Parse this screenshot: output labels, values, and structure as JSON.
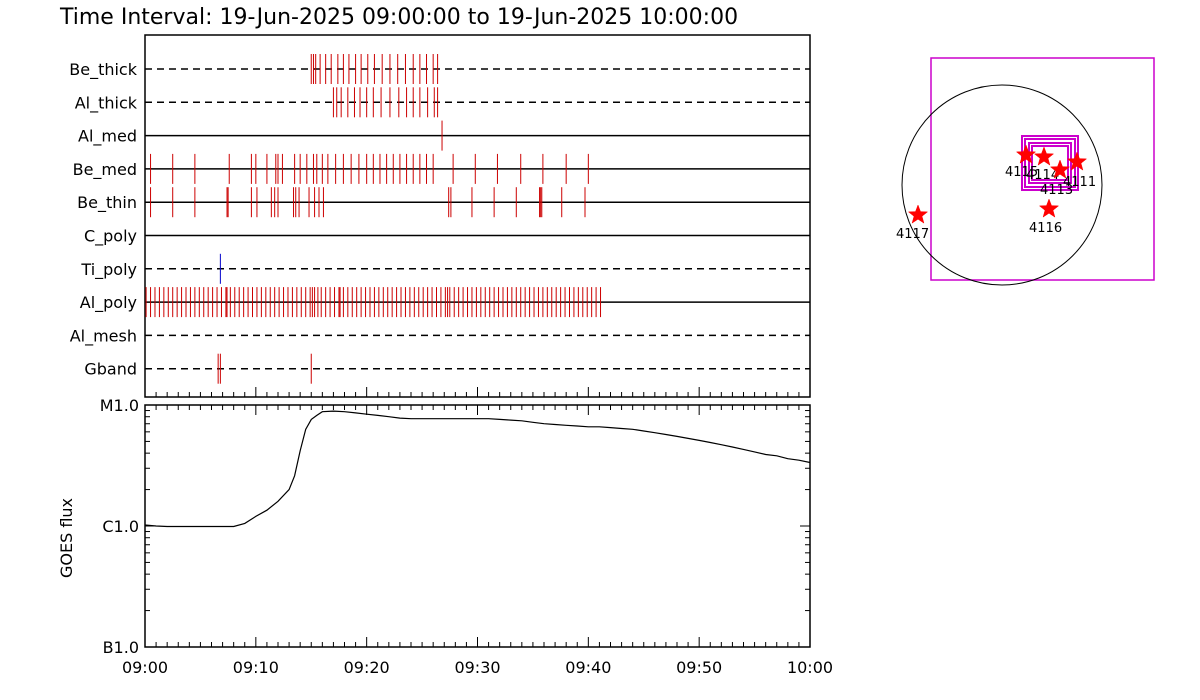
{
  "title": "Time Interval: 19-Jun-2025 09:00:00 to 19-Jun-2025 10:00:00",
  "chart_data": [
    {
      "type": "scatter",
      "name": "filter-timeline",
      "xlim": [
        "09:00",
        "10:00"
      ],
      "rows": [
        {
          "label": "Be_thick",
          "line": "dashed",
          "color": "#cc0000",
          "events": [
            "09:15:0",
            "09:15:2",
            "09:15:4",
            "09:15:8",
            "09:16:3",
            "09:16:8",
            "09:17:4",
            "09:17:9",
            "09:18:4",
            "09:19:0",
            "09:19:5",
            "09:20:1",
            "09:20:7",
            "09:21:4",
            "09:22:1",
            "09:22:8",
            "09:23:5",
            "09:24:2",
            "09:24:8",
            "09:25:4",
            "09:26:0",
            "09:26:4"
          ]
        },
        {
          "label": "Al_thick",
          "line": "dashed",
          "color": "#cc0000",
          "events": [
            "09:17:0",
            "09:17:3",
            "09:17:7",
            "09:18:3",
            "09:18:9",
            "09:19:4",
            "09:20:0",
            "09:20:6",
            "09:21:3",
            "09:22:1",
            "09:22:9",
            "09:23:6",
            "09:24:2",
            "09:24:8",
            "09:25:5",
            "09:26:1",
            "09:26:4"
          ]
        },
        {
          "label": "Al_med",
          "line": "solid",
          "color": "#cc0000",
          "events": [
            "09:26:8"
          ]
        },
        {
          "label": "Be_med",
          "line": "solid",
          "color": "#cc0000",
          "events": [
            "09:00:5",
            "09:02:5",
            "09:04:5",
            "09:07:6",
            "09:09:6",
            "09:10:0",
            "09:11:0",
            "09:11:8",
            "09:12:0",
            "09:12:4",
            "09:13:5",
            "09:14:0",
            "09:14:6",
            "09:15:2",
            "09:15:5",
            "09:16:0",
            "09:16:5",
            "09:17:2",
            "09:17:9",
            "09:18:6",
            "09:19:3",
            "09:20:0",
            "09:20:6",
            "09:21:2",
            "09:21:8",
            "09:22:4",
            "09:23:0",
            "09:23:6",
            "09:24:2",
            "09:24:8",
            "09:25:4",
            "09:26:0",
            "09:27:8",
            "09:29:8",
            "09:31:8",
            "09:33:9",
            "09:35:9",
            "09:38:0",
            "09:40:0"
          ]
        },
        {
          "label": "Be_thin",
          "line": "solid",
          "color": "#cc0000",
          "events": [
            "09:00:5",
            "09:02:5",
            "09:04:5",
            "09:07:4",
            "09:07:5",
            "09:09:6",
            "09:10:1",
            "09:11:4",
            "09:11:7",
            "09:12:0",
            "09:13:4",
            "09:13:6",
            "09:13:9",
            "09:14:8",
            "09:15:3",
            "09:15:7",
            "09:16:1",
            "09:27:4",
            "09:27:6",
            "09:29:5",
            "09:31:5",
            "09:33:5",
            "09:35:6",
            "09:35:7",
            "09:35:8",
            "09:37:6",
            "09:39:7"
          ]
        },
        {
          "label": "C_poly",
          "line": "solid",
          "color": "#cc0000",
          "events": []
        },
        {
          "label": "Ti_poly",
          "line": "dashed",
          "color": "#0000cc",
          "events": [
            "09:06:8"
          ]
        },
        {
          "label": "Al_poly",
          "line": "solid",
          "color": "#cc0000",
          "events": [
            "09:00:1",
            "09:00:5",
            "09:00:9",
            "09:01:3",
            "09:01:7",
            "09:02:1",
            "09:02:5",
            "09:02:9",
            "09:03:3",
            "09:03:7",
            "09:04:1",
            "09:04:5",
            "09:04:9",
            "09:05:3",
            "09:05:7",
            "09:06:1",
            "09:06:5",
            "09:06:9",
            "09:07:3",
            "09:07:4",
            "09:07:7",
            "09:08:1",
            "09:08:5",
            "09:08:9",
            "09:09:3",
            "09:09:7",
            "09:10:1",
            "09:10:5",
            "09:10:9",
            "09:11:3",
            "09:11:7",
            "09:12:1",
            "09:12:5",
            "09:12:9",
            "09:13:3",
            "09:13:7",
            "09:14:1",
            "09:14:5",
            "09:14:9",
            "09:15:1",
            "09:15:3",
            "09:15:6",
            "09:15:9",
            "09:16:3",
            "09:16:7",
            "09:17:1",
            "09:17:5",
            "09:17:6",
            "09:17:9",
            "09:18:3",
            "09:18:7",
            "09:19:1",
            "09:19:5",
            "09:19:9",
            "09:20:3",
            "09:20:7",
            "09:21:1",
            "09:21:5",
            "09:21:9",
            "09:22:3",
            "09:22:7",
            "09:23:1",
            "09:23:5",
            "09:23:9",
            "09:24:3",
            "09:24:7",
            "09:25:1",
            "09:25:5",
            "09:25:9",
            "09:26:3",
            "09:26:7",
            "09:27:1",
            "09:27:3",
            "09:27:5",
            "09:27:9",
            "09:28:3",
            "09:28:7",
            "09:29:1",
            "09:29:5",
            "09:29:9",
            "09:30:3",
            "09:30:7",
            "09:31:1",
            "09:31:5",
            "09:31:9",
            "09:32:3",
            "09:32:7",
            "09:33:1",
            "09:33:5",
            "09:33:9",
            "09:34:3",
            "09:34:7",
            "09:35:1",
            "09:35:5",
            "09:35:9",
            "09:36:3",
            "09:36:7",
            "09:37:1",
            "09:37:5",
            "09:37:9",
            "09:38:3",
            "09:38:7",
            "09:39:1",
            "09:39:5",
            "09:39:9",
            "09:40:3",
            "09:40:7",
            "09:41:1"
          ]
        },
        {
          "label": "Al_mesh",
          "line": "dashed",
          "color": "#cc0000",
          "events": []
        },
        {
          "label": "Gband",
          "line": "dashed",
          "color": "#cc0000",
          "events": [
            "09:06:6",
            "09:06:8",
            "09:15:0"
          ]
        }
      ]
    },
    {
      "type": "line",
      "name": "goes-flux",
      "ylabel": "GOES flux",
      "xlim": [
        "09:00",
        "10:00"
      ],
      "yscale": "log",
      "ylim": [
        1e-07,
        1e-05
      ],
      "ytick_labels": [
        {
          "value": 1e-07,
          "label": "B1.0"
        },
        {
          "value": 1e-06,
          "label": "C1.0"
        },
        {
          "value": 1e-05,
          "label": "M1.0"
        }
      ],
      "xtick_labels": [
        "09:00",
        "09:10",
        "09:20",
        "09:30",
        "09:40",
        "09:50",
        "10:00"
      ],
      "x": [
        "09:00",
        "09:01",
        "09:02",
        "09:03",
        "09:04",
        "09:05",
        "09:06",
        "09:07",
        "09:08",
        "09:09",
        "09:10",
        "09:11",
        "09:12",
        "09:13",
        "09:13:5",
        "09:14",
        "09:14:5",
        "09:15",
        "09:15:5",
        "09:16",
        "09:17",
        "09:18",
        "09:19",
        "09:20",
        "09:21",
        "09:22",
        "09:23",
        "09:24",
        "09:25",
        "09:26",
        "09:27",
        "09:28",
        "09:29",
        "09:30",
        "09:31",
        "09:32",
        "09:33",
        "09:34",
        "09:35",
        "09:36",
        "09:37",
        "09:38",
        "09:39",
        "09:40",
        "09:41",
        "09:42",
        "09:43",
        "09:44",
        "09:45",
        "09:46",
        "09:47",
        "09:48",
        "09:49",
        "09:50",
        "09:51",
        "09:52",
        "09:53",
        "09:54",
        "09:55",
        "09:56",
        "09:57",
        "09:58",
        "09:59",
        "10:00"
      ],
      "y": [
        1.02e-06,
        1e-06,
        9.9e-07,
        9.9e-07,
        9.9e-07,
        9.9e-07,
        9.9e-07,
        9.9e-07,
        9.9e-07,
        1.05e-06,
        1.2e-06,
        1.35e-06,
        1.6e-06,
        2e-06,
        2.6e-06,
        4.2e-06,
        6.3e-06,
        7.6e-06,
        8.2e-06,
        8.8e-06,
        8.9e-06,
        8.8e-06,
        8.6e-06,
        8.4e-06,
        8.2e-06,
        8e-06,
        7.8e-06,
        7.7e-06,
        7.7e-06,
        7.7e-06,
        7.7e-06,
        7.7e-06,
        7.7e-06,
        7.7e-06,
        7.7e-06,
        7.6e-06,
        7.5e-06,
        7.4e-06,
        7.2e-06,
        7e-06,
        6.9e-06,
        6.8e-06,
        6.7e-06,
        6.6e-06,
        6.6e-06,
        6.5e-06,
        6.4e-06,
        6.3e-06,
        6.1e-06,
        5.9e-06,
        5.7e-06,
        5.5e-06,
        5.3e-06,
        5.1e-06,
        4.9e-06,
        4.7e-06,
        4.5e-06,
        4.3e-06,
        4.1e-06,
        3.9e-06,
        3.8e-06,
        3.6e-06,
        3.5e-06,
        3.35e-06
      ]
    },
    {
      "type": "scatter",
      "name": "locator-map",
      "points": [
        {
          "label": "4115",
          "color": "#ff0000"
        },
        {
          "label": "4114",
          "color": "#ff0000"
        },
        {
          "label": "4113",
          "color": "#ff0000"
        },
        {
          "label": "4111",
          "color": "#ff0000"
        },
        {
          "label": "4116",
          "color": "#ff0000"
        },
        {
          "label": "4117",
          "color": "#ff0000"
        }
      ],
      "frame_color": "#cc00cc"
    }
  ]
}
